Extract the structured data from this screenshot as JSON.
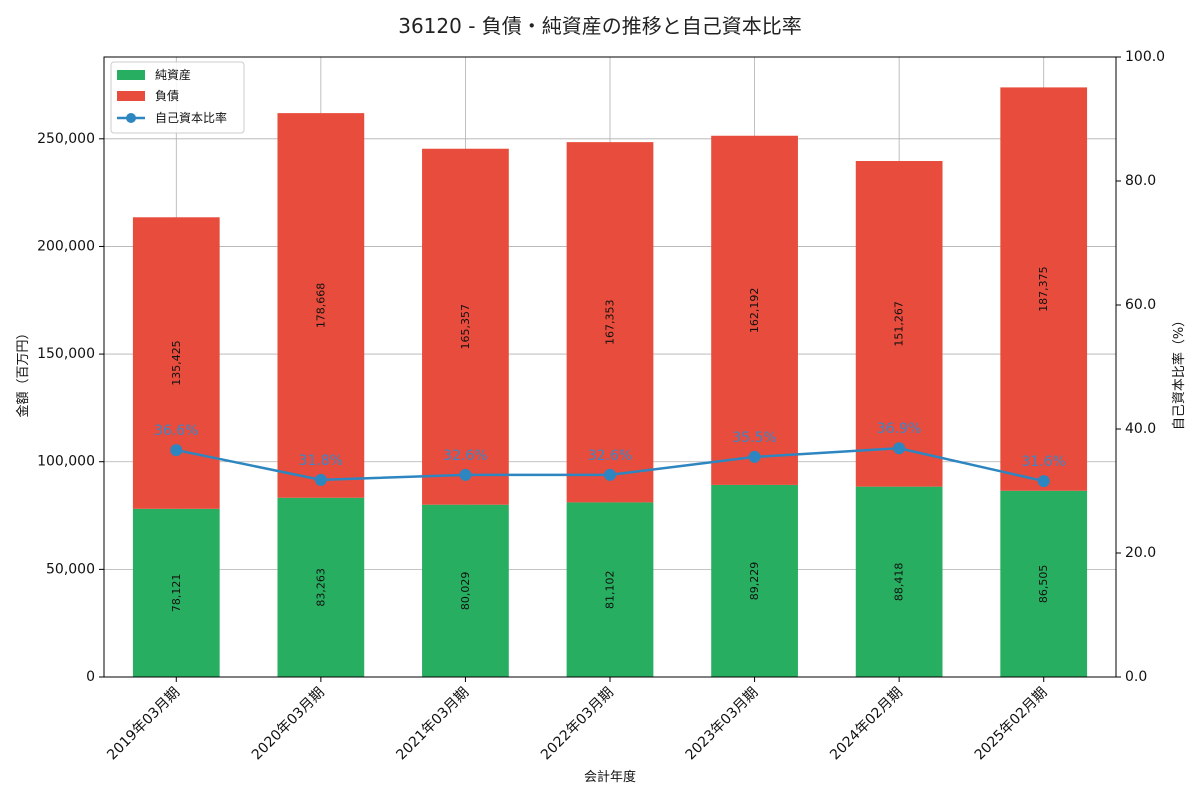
{
  "chart_data": {
    "type": "bar",
    "title": "36120 - 負債・純資産の推移と自己資本比率",
    "xlabel": "会計年度",
    "ylabel": "金額（百万円）",
    "y2label": "自己資本比率（%）",
    "categories": [
      "2019年03月期",
      "2020年03月期",
      "2021年03月期",
      "2022年03月期",
      "2023年03月期",
      "2024年02月期",
      "2025年02月期"
    ],
    "stacked": true,
    "series": [
      {
        "name": "純資産",
        "type": "bar",
        "color": "#27ae60",
        "values": [
          78121,
          83263,
          80029,
          81102,
          89229,
          88418,
          86505
        ],
        "labels": [
          "78,121",
          "83,263",
          "80,029",
          "81,102",
          "89,229",
          "88,418",
          "86,505"
        ]
      },
      {
        "name": "負債",
        "type": "bar",
        "color": "#e74c3c",
        "values": [
          135425,
          178668,
          165357,
          167353,
          162192,
          151267,
          187375
        ],
        "labels": [
          "135,425",
          "178,668",
          "165,357",
          "167,353",
          "162,192",
          "151,267",
          "187,375"
        ]
      },
      {
        "name": "自己資本比率",
        "type": "line",
        "axis": "right",
        "color": "#2e86c1",
        "values": [
          36.6,
          31.8,
          32.6,
          32.6,
          35.5,
          36.9,
          31.6
        ],
        "labels": [
          "36.6%",
          "31.8%",
          "32.6%",
          "32.6%",
          "35.5%",
          "36.9%",
          "31.6%"
        ]
      }
    ],
    "ylim": [
      0,
      288000
    ],
    "y_ticks": [
      0,
      50000,
      100000,
      150000,
      200000,
      250000
    ],
    "y_tick_labels": [
      "0",
      "50,000",
      "100,000",
      "150,000",
      "200,000",
      "250,000"
    ],
    "y2lim": [
      0,
      100
    ],
    "y2_ticks": [
      0,
      20,
      40,
      60,
      80,
      100
    ],
    "y2_tick_labels": [
      "0.0",
      "20.0",
      "40.0",
      "60.0",
      "80.0",
      "100.0"
    ],
    "grid": true,
    "legend_position": "top-left"
  }
}
